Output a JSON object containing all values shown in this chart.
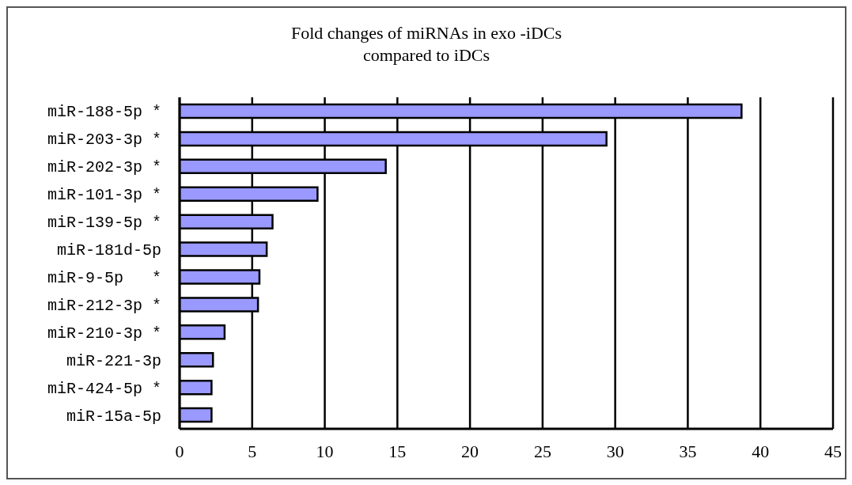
{
  "chart_data": {
    "type": "bar",
    "title": "Fold changes of miRNAs in exo -iDCs\ncompared to iDCs",
    "orientation": "horizontal",
    "categories": [
      "miR-188-5p *",
      "miR-203-3p *",
      "miR-202-3p *",
      "miR-101-3p *",
      "miR-139-5p *",
      "miR-181d-5p",
      "miR-9-5p   *",
      "miR-212-3p *",
      "miR-210-3p *",
      "miR-221-3p",
      "miR-424-5p *",
      "miR-15a-5p"
    ],
    "values": [
      38.7,
      29.4,
      14.2,
      9.5,
      6.4,
      6.0,
      5.5,
      5.4,
      3.1,
      2.3,
      2.2,
      2.2
    ],
    "color": "#9999ff",
    "xlim": [
      0,
      45
    ],
    "xticks": [
      0,
      5,
      10,
      15,
      20,
      25,
      30,
      35,
      40,
      45
    ],
    "grid": "x"
  }
}
